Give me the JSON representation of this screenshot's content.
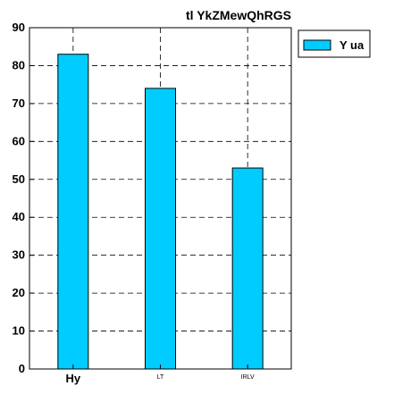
{
  "chart_data": {
    "type": "bar",
    "title": "tl YkZMewQhRGS",
    "categories": [
      "Hy",
      "LT",
      "IRLV"
    ],
    "series": [
      {
        "name": "Y ua",
        "values": [
          83,
          74,
          53
        ],
        "color": "#00ccff"
      }
    ],
    "ylim": [
      0,
      90
    ],
    "yticks": [
      0,
      10,
      20,
      30,
      40,
      50,
      60,
      70,
      80,
      90
    ],
    "grid": true,
    "legend": {
      "placement": "top-right",
      "entries": [
        "Y ua"
      ]
    }
  }
}
